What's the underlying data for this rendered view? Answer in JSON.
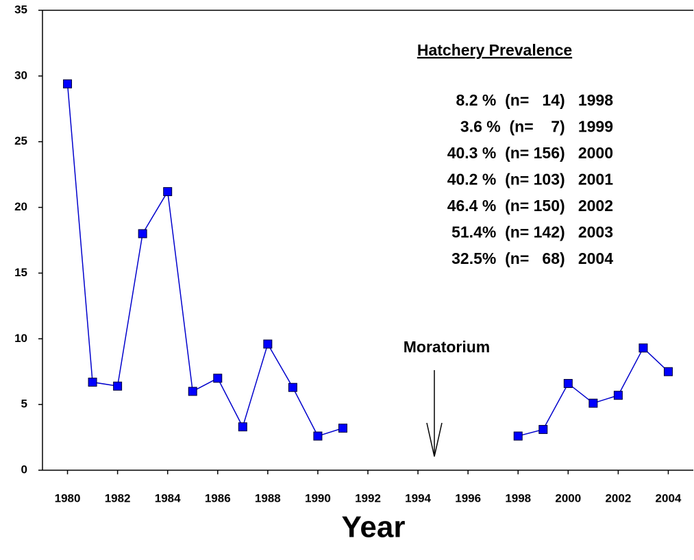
{
  "chart_data": {
    "type": "line",
    "x_label": "Year",
    "x": [
      1980,
      1981,
      1982,
      1983,
      1984,
      1985,
      1986,
      1987,
      1988,
      1989,
      1990,
      1991,
      1992,
      1993,
      1994,
      1995,
      1996,
      1997,
      1998,
      1999,
      2000,
      2001,
      2002,
      2003,
      2004
    ],
    "series": [
      {
        "color": "#0000ff",
        "values": [
          29.4,
          6.7,
          6.4,
          18.0,
          21.2,
          6.0,
          7.0,
          3.3,
          9.6,
          6.3,
          2.6,
          3.2,
          null,
          null,
          null,
          null,
          null,
          null,
          2.6,
          3.1,
          6.6,
          5.1,
          5.7,
          9.3,
          7.5
        ]
      }
    ],
    "xlim": [
      1979,
      2005
    ],
    "xticks": [
      1980,
      1982,
      1984,
      1986,
      1988,
      1990,
      1992,
      1994,
      1996,
      1998,
      2000,
      2002,
      2004
    ],
    "ylim": [
      0,
      35
    ],
    "yticks": [
      0,
      5,
      10,
      15,
      20,
      25,
      30,
      35
    ],
    "annotations": {
      "table_title": "Hatchery Prevalence",
      "table_lines": [
        "8.2 %  (n=   14)   1998",
        "3.6 %  (n=    7)   1999",
        "40.3 %  (n= 156)   2000",
        "40.2 %  (n= 103)   2001",
        "46.4 %  (n= 150)   2002",
        "51.4%  (n= 142)   2003",
        "32.5%  (n=   68)   2004"
      ],
      "arrow_label": "Moratorium"
    }
  }
}
